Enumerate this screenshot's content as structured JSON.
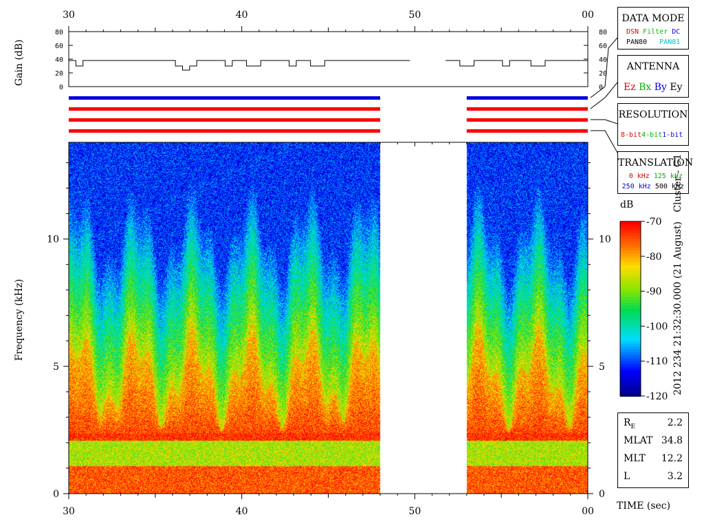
{
  "chart_data": {
    "type": "heatmap",
    "title": "",
    "xlabel": "TIME (sec)",
    "ylabel": "Frequency (kHz)",
    "x_ticks": [
      "30",
      "40",
      "50",
      "00"
    ],
    "y_ticks": [
      "0",
      "5",
      "10"
    ],
    "ylim": [
      0,
      13.8
    ],
    "gap_seconds": [
      48,
      53
    ],
    "colorbar": {
      "label": "dB",
      "ticks": [
        "-70",
        "-80",
        "-90",
        "-100",
        "-110",
        "-120"
      ],
      "range": [
        -120,
        -70
      ]
    },
    "gain": {
      "ylabel": "Gain (dB)",
      "ticks": [
        "80",
        "60",
        "40",
        "20",
        "0"
      ],
      "ylim": [
        0,
        80
      ],
      "values_db": [
        38,
        30,
        38,
        38,
        38,
        38,
        38,
        38,
        38,
        38,
        38,
        38,
        38,
        38,
        38,
        30,
        24,
        30,
        38,
        38,
        38,
        38,
        30,
        38,
        38,
        30,
        30,
        38,
        38,
        38,
        38,
        30,
        38,
        38,
        30,
        30,
        38,
        38,
        38,
        38,
        38,
        38,
        38,
        38,
        38,
        38,
        38,
        38,
        null,
        null,
        null,
        null,
        null,
        38,
        38,
        30,
        30,
        38,
        38,
        38,
        38,
        30,
        38,
        38,
        38,
        30,
        30,
        38,
        38,
        38,
        38,
        38,
        38
      ]
    },
    "antenna_bars": [
      "#0000dd",
      "#ff0000",
      "#ff0000",
      "#ff0000"
    ],
    "side_text": "2012 234 21:32:30.000 (21 August)   Cluster - C1"
  },
  "panels": {
    "data_mode": {
      "title": "DATA MODE",
      "items": [
        {
          "text": "DSN",
          "color": "#e00000"
        },
        {
          "text": "Filter",
          "color": "#00c000"
        },
        {
          "text": "DC",
          "color": "#0000e0"
        },
        {
          "text": "PAN80",
          "color": "#000000"
        },
        {
          "text": "PAN81",
          "color": "#00c0c0"
        }
      ]
    },
    "antenna": {
      "title": "ANTENNA",
      "items": [
        {
          "text": "Ez",
          "color": "#e00000"
        },
        {
          "text": "Bx",
          "color": "#00b000"
        },
        {
          "text": "By",
          "color": "#0000e0"
        },
        {
          "text": "Ey",
          "color": "#000000"
        }
      ]
    },
    "resolution": {
      "title": "RESOLUTION",
      "items": [
        {
          "text": "8-bit",
          "color": "#e00000"
        },
        {
          "text": "4-bit",
          "color": "#00b000"
        },
        {
          "text": "1-bit",
          "color": "#0000e0"
        }
      ]
    },
    "translation": {
      "title": "TRANSLATION",
      "items": [
        {
          "text": "0 kHz",
          "color": "#e00000"
        },
        {
          "text": "125 kHz",
          "color": "#00b000"
        },
        {
          "text": "250 kHz",
          "color": "#0000e0"
        },
        {
          "text": "500 kHz",
          "color": "#000000"
        }
      ]
    }
  },
  "orbit": [
    {
      "label": "R",
      "sub": "E",
      "value": "2.2"
    },
    {
      "label": "MLAT",
      "sub": "",
      "value": "34.8"
    },
    {
      "label": "MLT",
      "sub": "",
      "value": "12.2"
    },
    {
      "label": "L",
      "sub": "",
      "value": "3.2"
    }
  ]
}
